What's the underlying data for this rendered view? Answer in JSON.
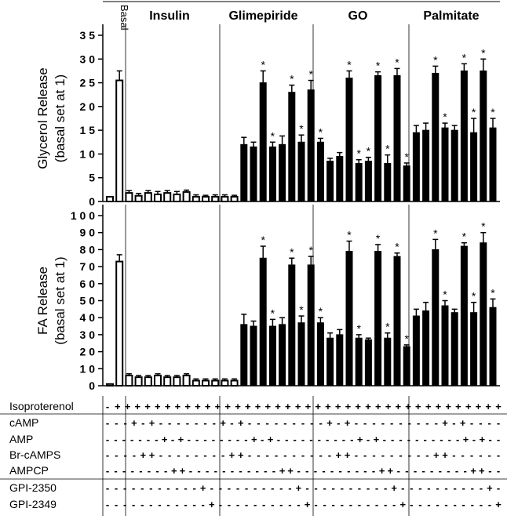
{
  "chart_data": [
    {
      "type": "bar",
      "panel": "top",
      "ylabel_line1": "Glycerol Release",
      "ylabel_line2": "(basal set at 1)",
      "ylim": [
        0,
        35
      ],
      "yticks": [
        0,
        5,
        10,
        15,
        20,
        25,
        30,
        35
      ],
      "ytick_labels": [
        "0",
        "5",
        "1 0",
        "1 5",
        "2 0",
        "2 5",
        "3 0",
        "3 5"
      ],
      "groups": [
        "Insulin",
        "Glimepiride",
        "GO",
        "Palmitate"
      ],
      "basal_label": "Basal",
      "values": [
        1,
        25.5,
        1.8,
        1.2,
        1.8,
        1.5,
        1.8,
        1.5,
        2.0,
        1.0,
        1.0,
        1.0,
        1.0,
        1.0,
        12.0,
        11.5,
        25.0,
        11.5,
        12.0,
        23.0,
        12.5,
        23.5,
        12.5,
        8.5,
        9.5,
        26.0,
        8.0,
        8.5,
        26.5,
        8.0,
        26.5,
        7.5,
        14.5,
        15.0,
        27.0,
        15.5,
        15.0,
        27.5,
        14.5,
        27.5,
        15.5
      ],
      "errors": [
        0,
        2.0,
        0.5,
        0.5,
        0.5,
        0.6,
        0.5,
        0.6,
        0.4,
        0.4,
        0.3,
        0.4,
        0.4,
        0.3,
        1.5,
        1.0,
        2.5,
        1.0,
        1.8,
        1.5,
        1.5,
        2.0,
        0.8,
        0.6,
        0.8,
        1.5,
        0.8,
        0.8,
        0.8,
        1.8,
        1.5,
        0.6,
        1.5,
        1.5,
        1.5,
        1.0,
        1.0,
        1.5,
        3.0,
        2.5,
        2.0
      ],
      "significant_indices": [
        16,
        17,
        19,
        20,
        21,
        22,
        25,
        26,
        27,
        28,
        29,
        30,
        31,
        34,
        35,
        37,
        38,
        39,
        40
      ]
    },
    {
      "type": "bar",
      "panel": "bottom",
      "ylabel_line1": "FA Release",
      "ylabel_line2": "(basal set at 1)",
      "ylim": [
        0,
        100
      ],
      "yticks": [
        0,
        10,
        20,
        30,
        40,
        50,
        60,
        70,
        80,
        90,
        100
      ],
      "ytick_labels": [
        "0",
        "1 0",
        "2 0",
        "3 0",
        "4 0",
        "5 0",
        "6 0",
        "7 0",
        "8 0",
        "9 0",
        "1 0 0"
      ],
      "values": [
        1,
        73,
        6,
        5,
        5,
        6,
        5,
        5,
        6,
        3,
        3,
        3,
        3,
        3,
        36,
        35,
        75,
        35,
        36,
        71,
        37,
        71,
        37,
        28,
        30,
        79,
        28,
        27,
        79,
        28,
        76,
        23,
        41,
        44,
        80,
        47,
        43,
        82,
        43,
        84,
        46
      ],
      "errors": [
        0,
        4,
        1,
        1,
        1,
        1,
        1,
        1,
        1,
        1,
        1,
        1,
        1,
        1,
        6,
        3,
        7,
        4,
        4,
        4,
        4,
        5,
        3,
        3,
        3,
        6,
        2,
        1,
        4,
        3,
        2,
        1,
        4,
        5,
        6,
        3,
        2,
        2,
        6,
        6,
        5
      ],
      "significant_indices": [
        16,
        17,
        19,
        20,
        21,
        22,
        25,
        26,
        28,
        29,
        30,
        31,
        34,
        35,
        37,
        38,
        39,
        40
      ]
    }
  ],
  "treatment_table": {
    "rows": [
      {
        "label": "Isoproterenol",
        "signs": "-+++++++++++++++++++++++++++++++++++++++"
      },
      {
        "label": "cAMP",
        "signs": "---+-+-------+-+---------+-+----------+-+----"
      },
      {
        "label": "AMP",
        "signs": "-------+-+--------+-+----------+-+----------+-+--"
      },
      {
        "label": "Br-cAMPS",
        "signs": "----++--------++----------++---------++------"
      },
      {
        "label": "AMPCP",
        "signs": "--------++-----------++----------++---------++--"
      },
      {
        "label": "GPI-2350",
        "signs": "-----------+----------+----------+----------+-"
      },
      {
        "label": "GPI-2349",
        "signs": "------------+----------+----------+----------+"
      }
    ]
  }
}
